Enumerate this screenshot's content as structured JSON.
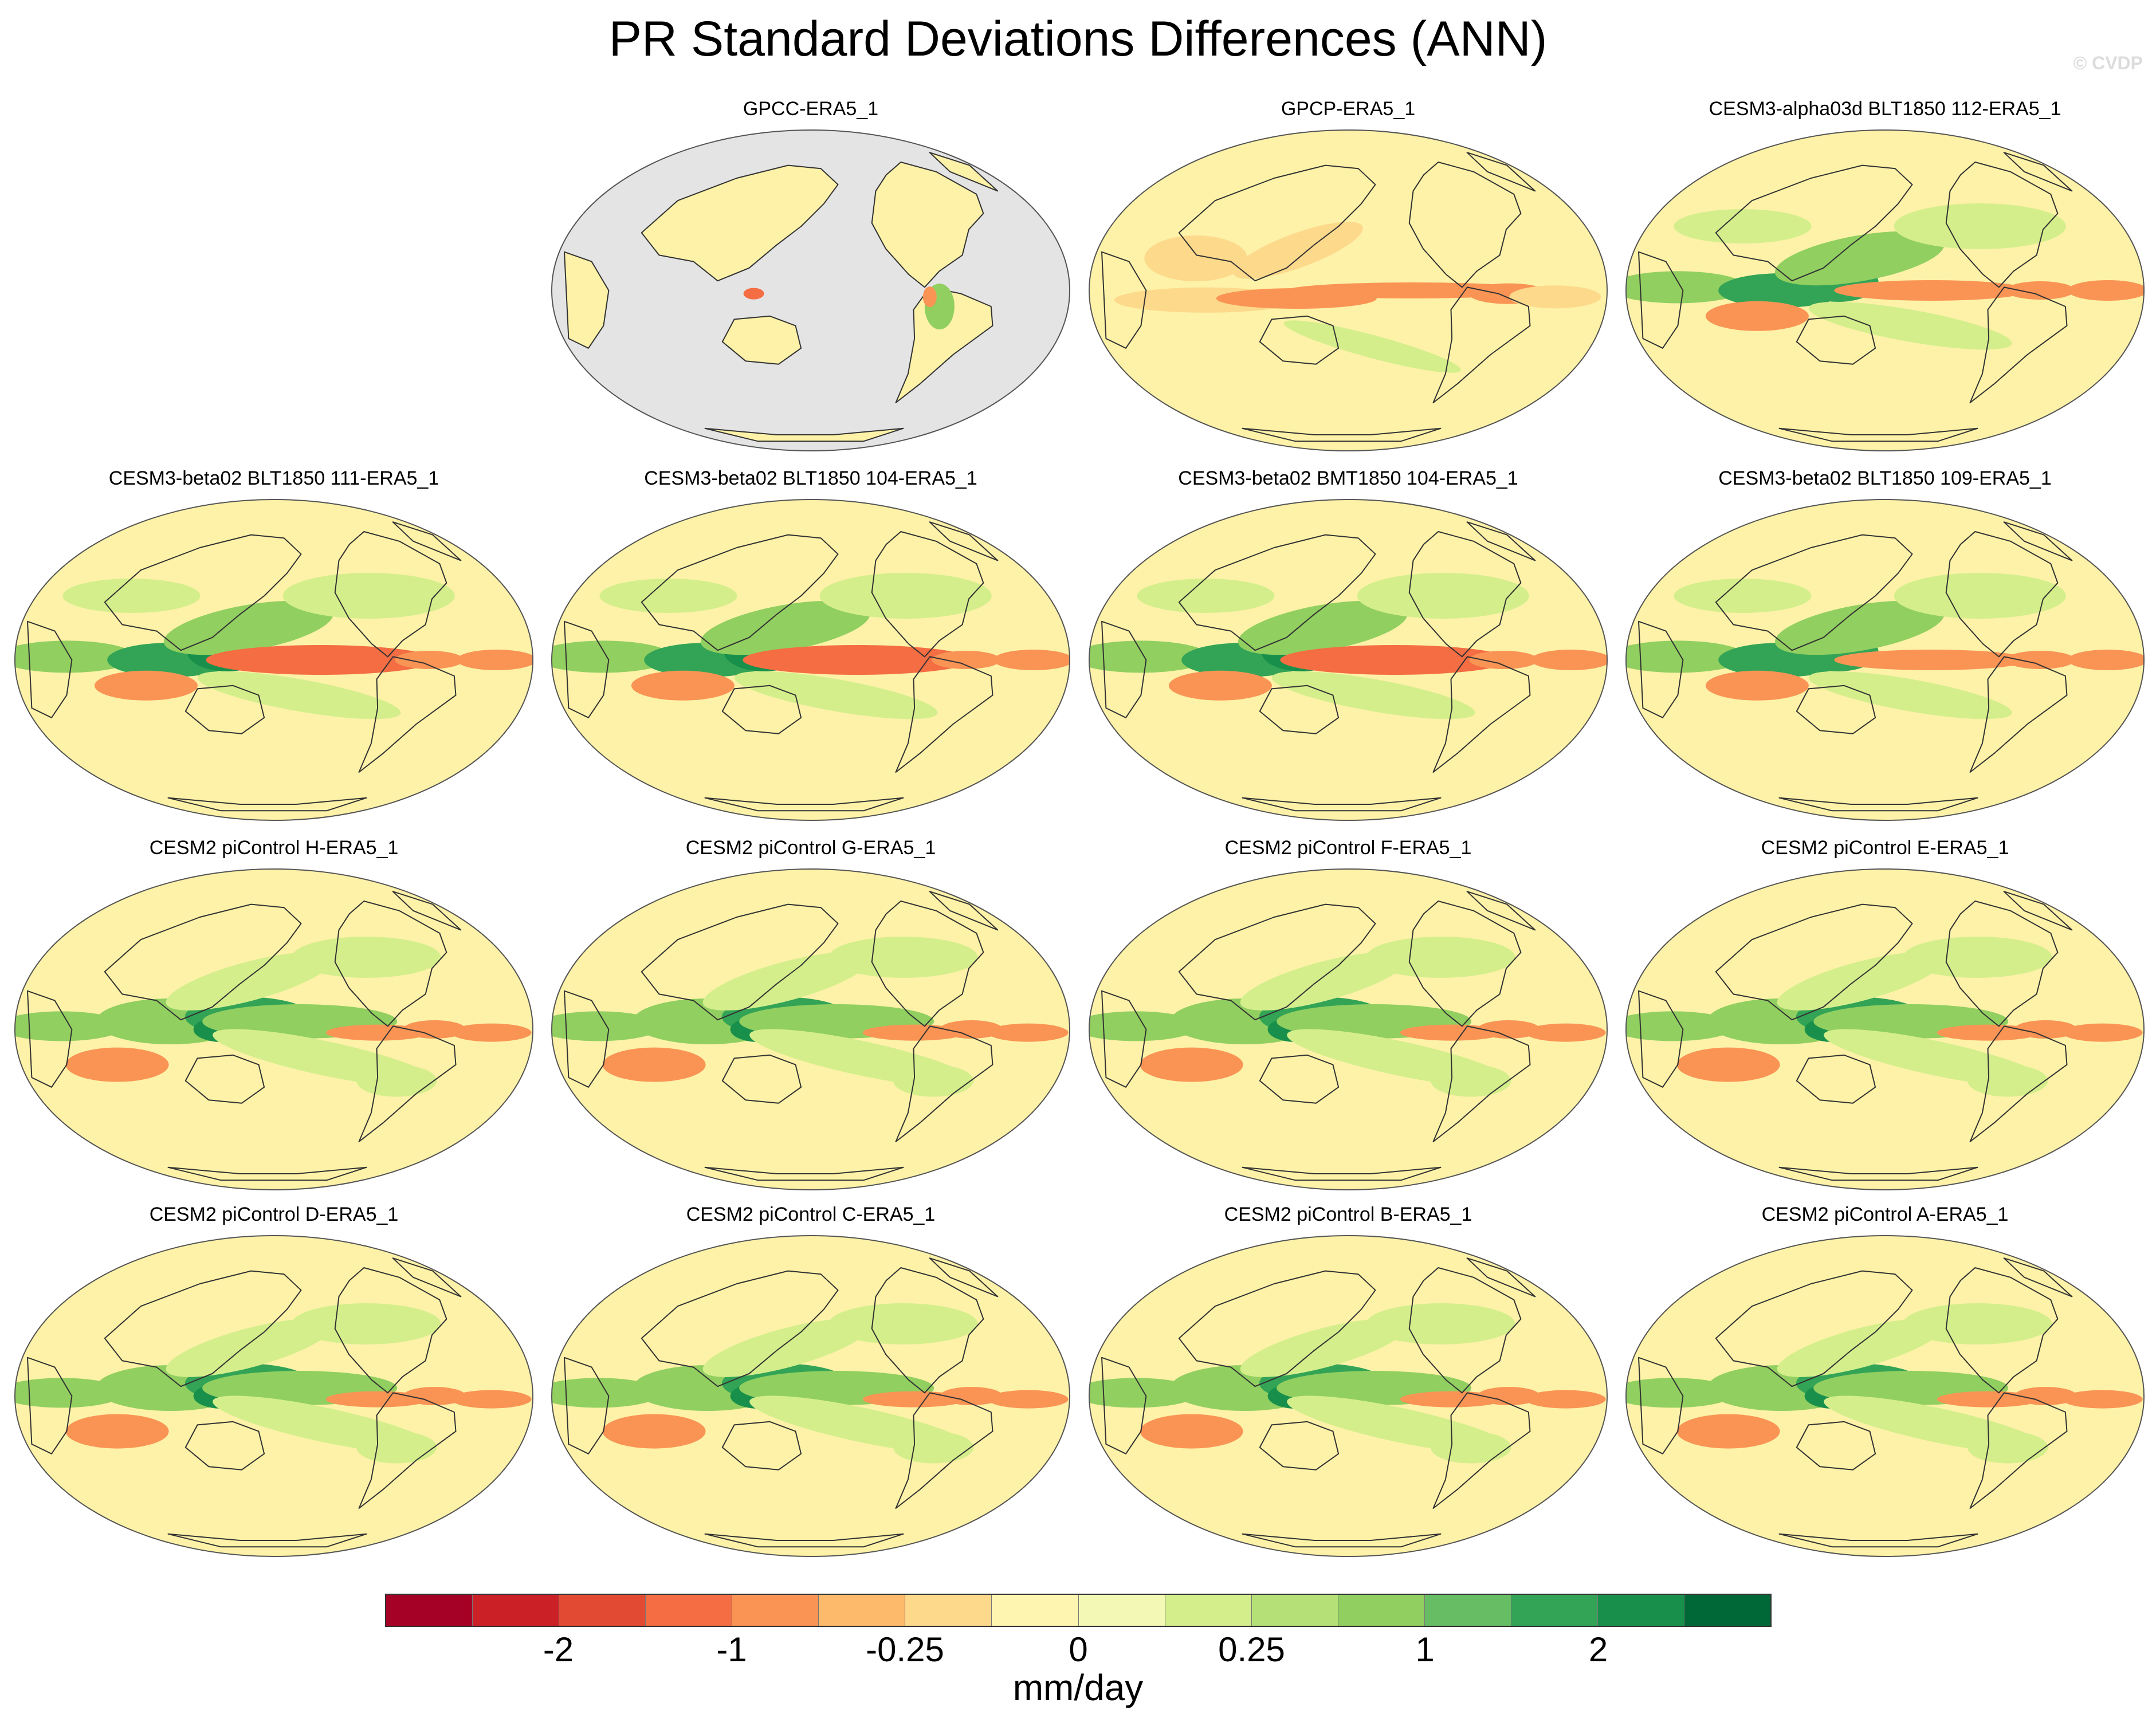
{
  "title": "PR Standard Deviations Differences (ANN)",
  "copyright": "© CVDP",
  "panels": [
    {
      "label": "GPCC-ERA5_1",
      "pattern": "land-only"
    },
    {
      "label": "GPCP-ERA5_1",
      "pattern": "obs"
    },
    {
      "label": "CESM3-alpha03d BLT1850 112-ERA5_1",
      "pattern": "cesm3"
    },
    {
      "label": "CESM3-beta02 BLT1850 111-ERA5_1",
      "pattern": "cesm3-strong"
    },
    {
      "label": "CESM3-beta02 BLT1850 104-ERA5_1",
      "pattern": "cesm3-strong"
    },
    {
      "label": "CESM3-beta02 BMT1850 104-ERA5_1",
      "pattern": "cesm3-strong"
    },
    {
      "label": "CESM3-beta02 BLT1850 109-ERA5_1",
      "pattern": "cesm3"
    },
    {
      "label": "CESM2 piControl H-ERA5_1",
      "pattern": "cesm2"
    },
    {
      "label": "CESM2 piControl G-ERA5_1",
      "pattern": "cesm2"
    },
    {
      "label": "CESM2 piControl F-ERA5_1",
      "pattern": "cesm2"
    },
    {
      "label": "CESM2 piControl E-ERA5_1",
      "pattern": "cesm2"
    },
    {
      "label": "CESM2 piControl D-ERA5_1",
      "pattern": "cesm2"
    },
    {
      "label": "CESM2 piControl C-ERA5_1",
      "pattern": "cesm2"
    },
    {
      "label": "CESM2 piControl B-ERA5_1",
      "pattern": "cesm2"
    },
    {
      "label": "CESM2 piControl A-ERA5_1",
      "pattern": "cesm2"
    }
  ],
  "colorbar": {
    "unit": "mm/day",
    "colors": [
      "#a50026",
      "#cc2027",
      "#e34a33",
      "#f46d43",
      "#fa9455",
      "#fdba6b",
      "#fdd98c",
      "#fef6b0",
      "#f3f9b4",
      "#d5ee8c",
      "#b4e077",
      "#91cf60",
      "#66bd63",
      "#33a456",
      "#18904b",
      "#006837"
    ],
    "tick_labels": [
      "-2",
      "-1",
      "-0.25",
      "0",
      "0.25",
      "1",
      "2"
    ]
  },
  "palette": {
    "land_mask": "#e4e4e4",
    "coast": "#333333",
    "neutral": "#fdf2a8",
    "weak_red": "#fdd98c",
    "red": "#fa9455",
    "strong_red": "#f46d43",
    "weak_green": "#d5ee8c",
    "green": "#91cf60",
    "strong_green": "#33a456",
    "darkest_green": "#18904b"
  }
}
